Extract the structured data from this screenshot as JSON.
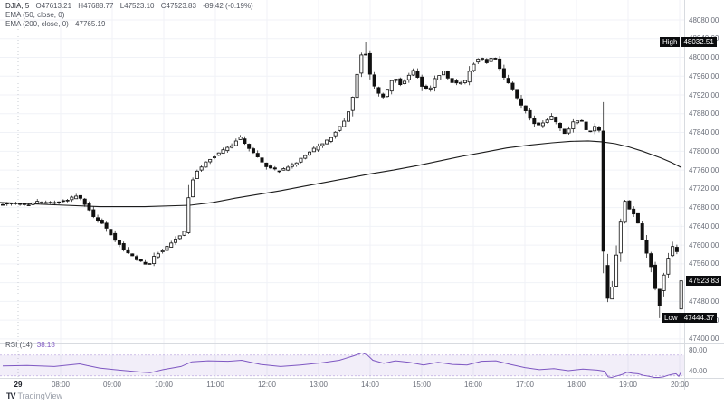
{
  "legend": {
    "row1": {
      "symbol": "DJIA, 5",
      "o": "O47613.21",
      "h": "H47688.77",
      "l": "L47523.10",
      "c": "C47523.83",
      "change": "-89.42 (-0.19%)"
    },
    "row2": {
      "label": "EMA (50, close, 0)"
    },
    "row3": {
      "label": "EMA (200, close, 0)",
      "value": "47765.19"
    }
  },
  "rsi_legend": {
    "label": "RSI (14)",
    "value": "38.18"
  },
  "badges": {
    "high": {
      "label": "High",
      "value": "48032.51"
    },
    "last": {
      "value": "47523.83"
    },
    "low": {
      "label": "Low",
      "value": "47444.37"
    }
  },
  "price_axis": {
    "labels": [
      "48080.00",
      "48040.00",
      "48000.00",
      "47960.00",
      "47920.00",
      "47880.00",
      "47840.00",
      "47800.00",
      "47760.00",
      "47720.00",
      "47680.00",
      "47640.00",
      "47600.00",
      "47560.00",
      "47520.00",
      "47480.00",
      "47440.00",
      "47400.00"
    ]
  },
  "rsi_axis": {
    "labels": [
      "80.00",
      "40.00"
    ]
  },
  "time_axis": {
    "day_label": "29",
    "hours": [
      "08:00",
      "09:00",
      "10:00",
      "11:00",
      "12:00",
      "13:00",
      "14:00",
      "15:00",
      "16:00",
      "17:00",
      "18:00",
      "19:00",
      "20:00"
    ]
  },
  "watermark": "TradingView",
  "colors": {
    "up_body": "#ffffff",
    "down_body": "#111111",
    "candle_stroke": "#111111",
    "ema_line": "#1c1c1c",
    "rsi_line": "#7e57c2",
    "rsi_band_fill": "rgba(126,87,194,0.10)",
    "rsi_band_edge": "rgba(126,87,194,0.45)",
    "grid": "#f0f2f7",
    "axis_border": "#d8dbe0",
    "badge_bg": "#0b0c0e"
  },
  "chart_data": {
    "type": "candlestick",
    "symbol": "DJIA",
    "interval_minutes": 5,
    "last_bar": {
      "open": 47613.21,
      "high": 47688.77,
      "low": 47523.1,
      "close": 47523.83,
      "change": -89.42,
      "change_pct": -0.19
    },
    "session_high": 48032.51,
    "session_low": 47444.37,
    "last_price": 47523.83,
    "ema200_last": 47765.19,
    "rsi_last": 38.18,
    "y_axis": {
      "tick_step": 40,
      "min_label": 47400,
      "max_label": 48080
    },
    "price_path": [
      [
        3,
        47688
      ],
      [
        15,
        47690
      ],
      [
        30,
        47684
      ],
      [
        45,
        47692
      ],
      [
        60,
        47690
      ],
      [
        75,
        47696
      ],
      [
        88,
        47704
      ],
      [
        96,
        47688
      ],
      [
        105,
        47662
      ],
      [
        118,
        47640
      ],
      [
        132,
        47606
      ],
      [
        145,
        47580
      ],
      [
        158,
        47564
      ],
      [
        166,
        47558
      ],
      [
        175,
        47580
      ],
      [
        188,
        47598
      ],
      [
        200,
        47618
      ],
      [
        207,
        47630
      ],
      [
        212,
        47726
      ],
      [
        220,
        47758
      ],
      [
        230,
        47778
      ],
      [
        240,
        47790
      ],
      [
        252,
        47806
      ],
      [
        260,
        47816
      ],
      [
        267,
        47830
      ],
      [
        277,
        47806
      ],
      [
        288,
        47784
      ],
      [
        298,
        47764
      ],
      [
        310,
        47758
      ],
      [
        322,
        47766
      ],
      [
        332,
        47780
      ],
      [
        345,
        47800
      ],
      [
        355,
        47812
      ],
      [
        365,
        47824
      ],
      [
        375,
        47846
      ],
      [
        385,
        47872
      ],
      [
        393,
        47920
      ],
      [
        399,
        47988
      ],
      [
        404,
        48016
      ],
      [
        407,
        48006
      ],
      [
        411,
        47964
      ],
      [
        416,
        47938
      ],
      [
        424,
        47912
      ],
      [
        430,
        47928
      ],
      [
        437,
        47960
      ],
      [
        444,
        47942
      ],
      [
        452,
        47956
      ],
      [
        460,
        47972
      ],
      [
        468,
        47940
      ],
      [
        476,
        47928
      ],
      [
        484,
        47958
      ],
      [
        492,
        47970
      ],
      [
        500,
        47950
      ],
      [
        508,
        47942
      ],
      [
        516,
        47948
      ],
      [
        524,
        47984
      ],
      [
        532,
        48000
      ],
      [
        540,
        47990
      ],
      [
        548,
        48002
      ],
      [
        556,
        47968
      ],
      [
        564,
        47944
      ],
      [
        572,
        47918
      ],
      [
        580,
        47894
      ],
      [
        588,
        47870
      ],
      [
        596,
        47852
      ],
      [
        604,
        47862
      ],
      [
        612,
        47874
      ],
      [
        620,
        47852
      ],
      [
        628,
        47836
      ],
      [
        636,
        47862
      ],
      [
        644,
        47870
      ],
      [
        652,
        47838
      ],
      [
        660,
        47852
      ],
      [
        667.5,
        47838
      ],
      [
        669.5,
        47508
      ],
      [
        676,
        47478
      ],
      [
        682,
        47558
      ],
      [
        688,
        47648
      ],
      [
        693,
        47696
      ],
      [
        699,
        47672
      ],
      [
        705,
        47664
      ],
      [
        711,
        47620
      ],
      [
        717,
        47582
      ],
      [
        723,
        47548
      ],
      [
        728,
        47486
      ],
      [
        733,
        47514
      ],
      [
        738,
        47556
      ],
      [
        743,
        47590
      ],
      [
        748,
        47602
      ],
      [
        753,
        47560
      ]
    ],
    "ema200_path": [
      [
        0,
        47691
      ],
      [
        60,
        47686
      ],
      [
        110,
        47682
      ],
      [
        160,
        47682
      ],
      [
        210,
        47685
      ],
      [
        235,
        47691
      ],
      [
        260,
        47700
      ],
      [
        285,
        47708
      ],
      [
        310,
        47716
      ],
      [
        335,
        47725
      ],
      [
        360,
        47734
      ],
      [
        385,
        47743
      ],
      [
        410,
        47752
      ],
      [
        435,
        47760
      ],
      [
        460,
        47769
      ],
      [
        485,
        47779
      ],
      [
        510,
        47789
      ],
      [
        535,
        47798
      ],
      [
        560,
        47807
      ],
      [
        585,
        47813
      ],
      [
        610,
        47818
      ],
      [
        630,
        47821
      ],
      [
        650,
        47822
      ],
      [
        665,
        47820
      ],
      [
        680,
        47816
      ],
      [
        695,
        47809
      ],
      [
        710,
        47800
      ],
      [
        720,
        47793
      ],
      [
        730,
        47786
      ],
      [
        742,
        47776
      ],
      [
        753,
        47765.19
      ]
    ],
    "rsi": {
      "period": 14,
      "band": [
        30,
        70
      ],
      "ticks": [
        80,
        40
      ],
      "path": [
        [
          3,
          49
        ],
        [
          30,
          50
        ],
        [
          60,
          48
        ],
        [
          88,
          53
        ],
        [
          96,
          50
        ],
        [
          110,
          45
        ],
        [
          132,
          41
        ],
        [
          158,
          37
        ],
        [
          166,
          36
        ],
        [
          180,
          42
        ],
        [
          200,
          48
        ],
        [
          212,
          57
        ],
        [
          230,
          59
        ],
        [
          252,
          58
        ],
        [
          267,
          60
        ],
        [
          288,
          52
        ],
        [
          310,
          48
        ],
        [
          332,
          51
        ],
        [
          355,
          55
        ],
        [
          375,
          60
        ],
        [
          390,
          68
        ],
        [
          400,
          74
        ],
        [
          406,
          70
        ],
        [
          412,
          60
        ],
        [
          424,
          54
        ],
        [
          437,
          59
        ],
        [
          452,
          56
        ],
        [
          468,
          51
        ],
        [
          484,
          56
        ],
        [
          500,
          52
        ],
        [
          516,
          51
        ],
        [
          532,
          58
        ],
        [
          548,
          59
        ],
        [
          564,
          52
        ],
        [
          580,
          46
        ],
        [
          596,
          42
        ],
        [
          612,
          44
        ],
        [
          628,
          40
        ],
        [
          644,
          43
        ],
        [
          660,
          41
        ],
        [
          668,
          39
        ],
        [
          672,
          28
        ],
        [
          676,
          26
        ],
        [
          682,
          30
        ],
        [
          688,
          33
        ],
        [
          693,
          37
        ],
        [
          699,
          35
        ],
        [
          705,
          34
        ],
        [
          711,
          31
        ],
        [
          717,
          29
        ],
        [
          723,
          27
        ],
        [
          728,
          24
        ],
        [
          733,
          28
        ],
        [
          738,
          31
        ],
        [
          743,
          33
        ],
        [
          747,
          34
        ],
        [
          750,
          29
        ],
        [
          753,
          38.18
        ]
      ]
    }
  }
}
